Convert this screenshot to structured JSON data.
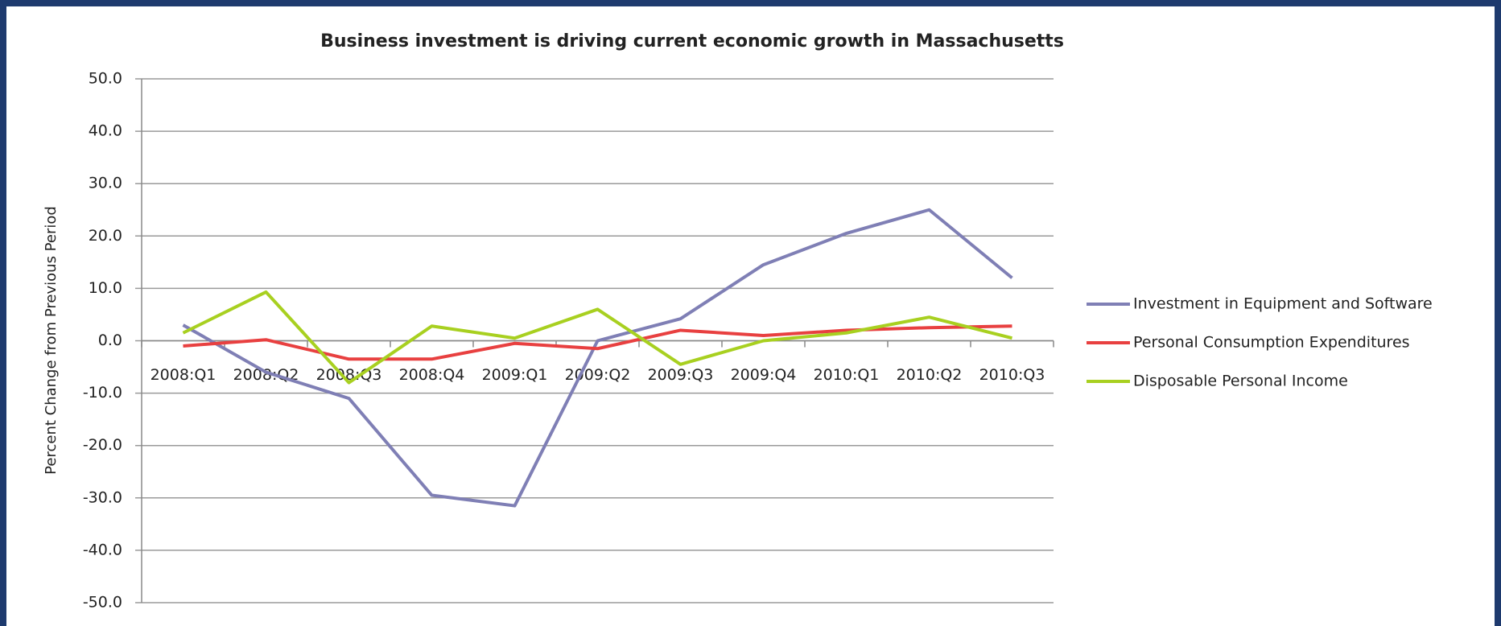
{
  "chart_data": {
    "type": "line",
    "title": "Business investment is driving current economic growth in Massachusetts",
    "y_label": "Percent Change from Previous Period",
    "categories": [
      "2008:Q1",
      "2008:Q2",
      "2008:Q3",
      "2008:Q4",
      "2009:Q1",
      "2009:Q2",
      "2009:Q3",
      "2009:Q4",
      "2010:Q1",
      "2010:Q2",
      "2010:Q3"
    ],
    "series": [
      {
        "name": "Investment in Equipment and Software",
        "color": "#7f7fb5",
        "values": [
          3.0,
          -6.0,
          -11.0,
          -29.5,
          -31.5,
          0.0,
          4.2,
          14.5,
          20.5,
          25.0,
          12.0
        ]
      },
      {
        "name": "Personal Consumption Expenditures",
        "color": "#e84040",
        "values": [
          -1.0,
          0.2,
          -3.5,
          -3.5,
          -0.5,
          -1.5,
          2.0,
          1.0,
          2.0,
          2.5,
          2.8
        ]
      },
      {
        "name": "Disposable Personal Income",
        "color": "#a8d020",
        "values": [
          1.5,
          9.3,
          -8.0,
          2.8,
          0.5,
          6.0,
          -4.5,
          0.0,
          1.5,
          4.5,
          0.5
        ]
      }
    ],
    "ylim": [
      -50,
      50
    ],
    "yticks": [
      {
        "value": -50,
        "label": "-50.0"
      },
      {
        "value": -40,
        "label": "-40.0"
      },
      {
        "value": -30,
        "label": "-30.0"
      },
      {
        "value": -20,
        "label": "-20.0"
      },
      {
        "value": -10,
        "label": "-10.0"
      },
      {
        "value": 0,
        "label": "0.0"
      },
      {
        "value": 10,
        "label": "10.0"
      },
      {
        "value": 20,
        "label": "20.0"
      },
      {
        "value": 30,
        "label": "30.0"
      },
      {
        "value": 40,
        "label": "40.0"
      },
      {
        "value": 50,
        "label": "50.0"
      }
    ],
    "grid": true,
    "legend": "right"
  }
}
